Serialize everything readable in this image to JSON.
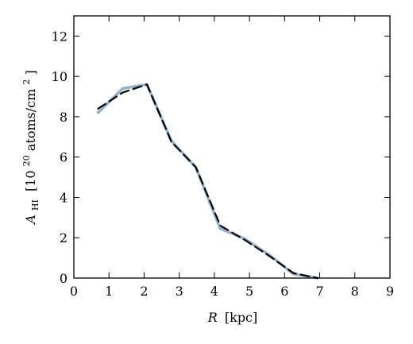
{
  "chart_data": {
    "type": "line",
    "xlabel": {
      "var": "R",
      "unit": "[kpc]"
    },
    "ylabel": {
      "var": "A",
      "sub": "HI",
      "pre": "[10",
      "sup": "20",
      "mid": " atoms/cm",
      "sup2": "2",
      "post": " ]"
    },
    "xlim": [
      0,
      9
    ],
    "ylim": [
      0,
      13
    ],
    "xticks": [
      0,
      1,
      2,
      3,
      4,
      5,
      6,
      7,
      8,
      9
    ],
    "yticks": [
      0,
      2,
      4,
      6,
      8,
      10,
      12
    ],
    "grid": false,
    "series": [
      {
        "style": "solid",
        "color": "#8aa8c0",
        "x": [
          0.69,
          1.39,
          2.08,
          2.78,
          3.47,
          4.17,
          4.86,
          5.56,
          6.25,
          6.94
        ],
        "y": [
          8.2,
          9.4,
          9.6,
          6.8,
          5.5,
          2.45,
          1.95,
          1.15,
          0.2,
          0.0
        ]
      },
      {
        "style": "dashed",
        "color": "#000000",
        "x": [
          0.69,
          1.39,
          2.08,
          2.78,
          3.47,
          4.17,
          4.86,
          5.56,
          6.25,
          6.94
        ],
        "y": [
          8.4,
          9.2,
          9.6,
          6.75,
          5.5,
          2.6,
          1.9,
          1.1,
          0.25,
          0.0
        ]
      }
    ]
  }
}
